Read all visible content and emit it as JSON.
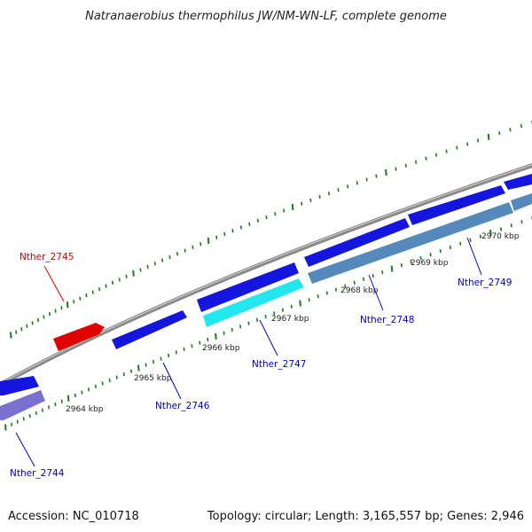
{
  "title": "Natranaerobius thermophilus JW/NM-WN-LF, complete genome",
  "footer": {
    "accession": "Accession: NC_010718",
    "summary": "Topology: circular; Length: 3,165,557 bp; Genes: 2,946"
  },
  "scale_labels": [
    "2964 kbp",
    "2965 kbp",
    "2966 kbp",
    "2967 kbp",
    "2968 kbp",
    "2969 kbp",
    "2970 kbp"
  ],
  "genes": [
    {
      "id": "Nther_2744",
      "color": "#0000cc"
    },
    {
      "id": "Nther_2745",
      "color": "#dd0000"
    },
    {
      "id": "Nther_2746",
      "color": "#0000cc"
    },
    {
      "id": "Nther_2747",
      "color": "#0000cc"
    },
    {
      "id": "Nther_2748",
      "color": "#0000cc"
    },
    {
      "id": "Nther_2749",
      "color": "#0000cc"
    }
  ],
  "colors": {
    "backbone": "#8a8a8a",
    "tick": "#1f7a1f",
    "feature_blue": "#1515e0",
    "feature_red": "#e00000",
    "feature_cyan": "#22e8ee",
    "feature_steel": "#5588bb",
    "feature_lavender": "#7a70cf"
  }
}
